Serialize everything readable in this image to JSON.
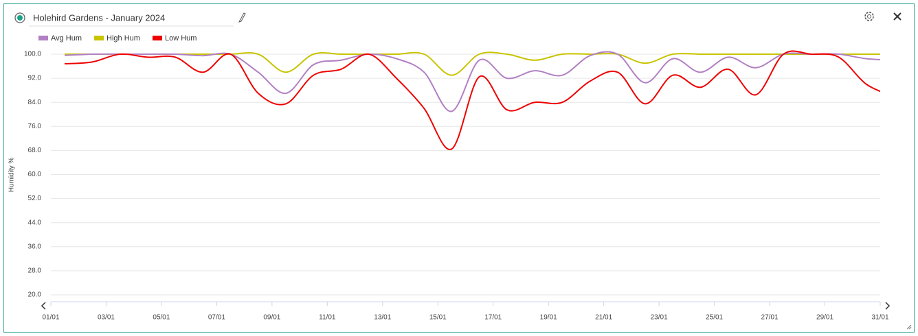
{
  "chart_data": {
    "type": "line",
    "title": "Holehird Gardens - January 2024",
    "ylabel": "Humidity %",
    "categories": [
      "01/01",
      null,
      "03/01",
      null,
      "05/01",
      null,
      "07/01",
      null,
      "09/01",
      null,
      "11/01",
      null,
      "13/01",
      null,
      "15/01",
      null,
      "17/01",
      null,
      "19/01",
      null,
      "21/01",
      null,
      "23/01",
      null,
      "25/01",
      null,
      "27/01",
      null,
      "29/01",
      null,
      "31/01"
    ],
    "series": [
      {
        "name": "Avg Hum",
        "color": "#b27fc3",
        "values": [
          99.6,
          100,
          100,
          100,
          100,
          99.5,
          100,
          94,
          87,
          96.5,
          98,
          100,
          98.5,
          94,
          81,
          98,
          92,
          94.5,
          93,
          99.5,
          100,
          90.5,
          98.5,
          94,
          99,
          95.5,
          100,
          100,
          100,
          98.5,
          98
        ]
      },
      {
        "name": "High Hum",
        "color": "#c8c400",
        "values": [
          100,
          100,
          100,
          100,
          100,
          100,
          100,
          100,
          94,
          100,
          100,
          100,
          100,
          100,
          93,
          100,
          100,
          98,
          100,
          100,
          100,
          97,
          100,
          100,
          100,
          100,
          100,
          100,
          100,
          100,
          100
        ]
      },
      {
        "name": "Low Hum",
        "color": "#ee0000",
        "values": [
          96.8,
          97.4,
          100,
          99,
          99,
          94,
          100,
          87,
          83.5,
          93,
          95,
          100,
          92,
          82,
          68.5,
          92.5,
          81.5,
          84,
          84,
          91,
          94,
          83.5,
          93,
          89,
          95,
          86.5,
          100,
          100,
          99,
          90,
          86
        ]
      }
    ],
    "ylim": [
      20,
      100
    ],
    "yticks": [
      {
        "value": 20,
        "label": "20.0"
      },
      {
        "value": 28,
        "label": "28.0"
      },
      {
        "value": 36,
        "label": "36.0"
      },
      {
        "value": 44,
        "label": "44.0"
      },
      {
        "value": 52,
        "label": "52.0"
      },
      {
        "value": 60,
        "label": "60.0"
      },
      {
        "value": 68,
        "label": "68.0"
      },
      {
        "value": 76,
        "label": "76.0"
      },
      {
        "value": 84,
        "label": "84.0"
      },
      {
        "value": 92,
        "label": "92.0"
      },
      {
        "value": 100,
        "label": "100.0"
      }
    ],
    "grid": true
  }
}
